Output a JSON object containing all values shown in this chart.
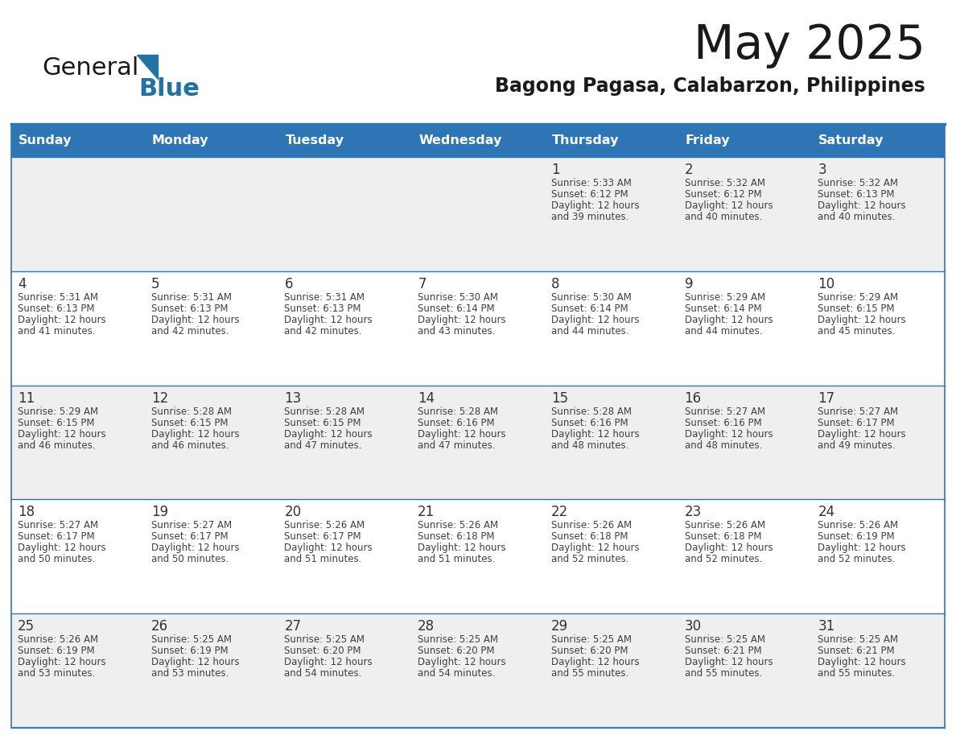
{
  "title": "May 2025",
  "subtitle": "Bagong Pagasa, Calabarzon, Philippines",
  "header_color": "#2E75B6",
  "header_text_color": "#FFFFFF",
  "day_names": [
    "Sunday",
    "Monday",
    "Tuesday",
    "Wednesday",
    "Thursday",
    "Friday",
    "Saturday"
  ],
  "row_colors": [
    "#EFEFEF",
    "#FFFFFF",
    "#EFEFEF",
    "#FFFFFF",
    "#EFEFEF"
  ],
  "border_color": "#2E75B6",
  "text_color": "#404040",
  "num_color": "#333333",
  "logo_general_color": "#1A1A1A",
  "logo_blue_color": "#2471A3",
  "logo_triangle_color": "#2471A3",
  "weeks": [
    [
      {
        "day": "",
        "sunrise": "",
        "sunset": "",
        "daylight": ""
      },
      {
        "day": "",
        "sunrise": "",
        "sunset": "",
        "daylight": ""
      },
      {
        "day": "",
        "sunrise": "",
        "sunset": "",
        "daylight": ""
      },
      {
        "day": "",
        "sunrise": "",
        "sunset": "",
        "daylight": ""
      },
      {
        "day": "1",
        "sunrise": "5:33 AM",
        "sunset": "6:12 PM",
        "daylight": "12 hours and 39 minutes."
      },
      {
        "day": "2",
        "sunrise": "5:32 AM",
        "sunset": "6:12 PM",
        "daylight": "12 hours and 40 minutes."
      },
      {
        "day": "3",
        "sunrise": "5:32 AM",
        "sunset": "6:13 PM",
        "daylight": "12 hours and 40 minutes."
      }
    ],
    [
      {
        "day": "4",
        "sunrise": "5:31 AM",
        "sunset": "6:13 PM",
        "daylight": "12 hours and 41 minutes."
      },
      {
        "day": "5",
        "sunrise": "5:31 AM",
        "sunset": "6:13 PM",
        "daylight": "12 hours and 42 minutes."
      },
      {
        "day": "6",
        "sunrise": "5:31 AM",
        "sunset": "6:13 PM",
        "daylight": "12 hours and 42 minutes."
      },
      {
        "day": "7",
        "sunrise": "5:30 AM",
        "sunset": "6:14 PM",
        "daylight": "12 hours and 43 minutes."
      },
      {
        "day": "8",
        "sunrise": "5:30 AM",
        "sunset": "6:14 PM",
        "daylight": "12 hours and 44 minutes."
      },
      {
        "day": "9",
        "sunrise": "5:29 AM",
        "sunset": "6:14 PM",
        "daylight": "12 hours and 44 minutes."
      },
      {
        "day": "10",
        "sunrise": "5:29 AM",
        "sunset": "6:15 PM",
        "daylight": "12 hours and 45 minutes."
      }
    ],
    [
      {
        "day": "11",
        "sunrise": "5:29 AM",
        "sunset": "6:15 PM",
        "daylight": "12 hours and 46 minutes."
      },
      {
        "day": "12",
        "sunrise": "5:28 AM",
        "sunset": "6:15 PM",
        "daylight": "12 hours and 46 minutes."
      },
      {
        "day": "13",
        "sunrise": "5:28 AM",
        "sunset": "6:15 PM",
        "daylight": "12 hours and 47 minutes."
      },
      {
        "day": "14",
        "sunrise": "5:28 AM",
        "sunset": "6:16 PM",
        "daylight": "12 hours and 47 minutes."
      },
      {
        "day": "15",
        "sunrise": "5:28 AM",
        "sunset": "6:16 PM",
        "daylight": "12 hours and 48 minutes."
      },
      {
        "day": "16",
        "sunrise": "5:27 AM",
        "sunset": "6:16 PM",
        "daylight": "12 hours and 48 minutes."
      },
      {
        "day": "17",
        "sunrise": "5:27 AM",
        "sunset": "6:17 PM",
        "daylight": "12 hours and 49 minutes."
      }
    ],
    [
      {
        "day": "18",
        "sunrise": "5:27 AM",
        "sunset": "6:17 PM",
        "daylight": "12 hours and 50 minutes."
      },
      {
        "day": "19",
        "sunrise": "5:27 AM",
        "sunset": "6:17 PM",
        "daylight": "12 hours and 50 minutes."
      },
      {
        "day": "20",
        "sunrise": "5:26 AM",
        "sunset": "6:17 PM",
        "daylight": "12 hours and 51 minutes."
      },
      {
        "day": "21",
        "sunrise": "5:26 AM",
        "sunset": "6:18 PM",
        "daylight": "12 hours and 51 minutes."
      },
      {
        "day": "22",
        "sunrise": "5:26 AM",
        "sunset": "6:18 PM",
        "daylight": "12 hours and 52 minutes."
      },
      {
        "day": "23",
        "sunrise": "5:26 AM",
        "sunset": "6:18 PM",
        "daylight": "12 hours and 52 minutes."
      },
      {
        "day": "24",
        "sunrise": "5:26 AM",
        "sunset": "6:19 PM",
        "daylight": "12 hours and 52 minutes."
      }
    ],
    [
      {
        "day": "25",
        "sunrise": "5:26 AM",
        "sunset": "6:19 PM",
        "daylight": "12 hours and 53 minutes."
      },
      {
        "day": "26",
        "sunrise": "5:25 AM",
        "sunset": "6:19 PM",
        "daylight": "12 hours and 53 minutes."
      },
      {
        "day": "27",
        "sunrise": "5:25 AM",
        "sunset": "6:20 PM",
        "daylight": "12 hours and 54 minutes."
      },
      {
        "day": "28",
        "sunrise": "5:25 AM",
        "sunset": "6:20 PM",
        "daylight": "12 hours and 54 minutes."
      },
      {
        "day": "29",
        "sunrise": "5:25 AM",
        "sunset": "6:20 PM",
        "daylight": "12 hours and 55 minutes."
      },
      {
        "day": "30",
        "sunrise": "5:25 AM",
        "sunset": "6:21 PM",
        "daylight": "12 hours and 55 minutes."
      },
      {
        "day": "31",
        "sunrise": "5:25 AM",
        "sunset": "6:21 PM",
        "daylight": "12 hours and 55 minutes."
      }
    ]
  ]
}
